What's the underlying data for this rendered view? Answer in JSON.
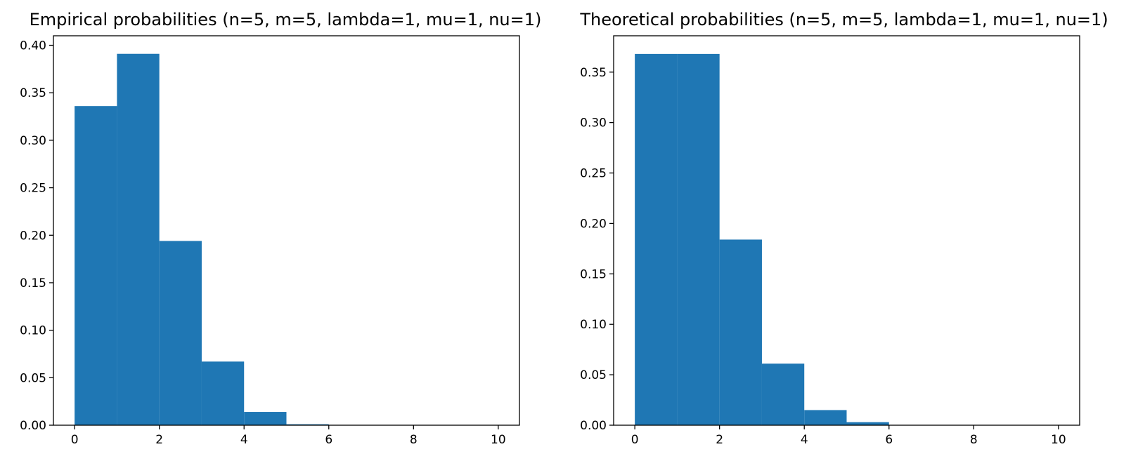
{
  "figure": {
    "background": "#ffffff"
  },
  "chart_data": [
    {
      "type": "bar",
      "title": "Empirical probabilities (n=5, m=5, lambda=1, mu=1, nu=1)",
      "xlabel": "",
      "ylabel": "",
      "color": "#1f77b4",
      "bin_edges": [
        0,
        1,
        2,
        3,
        4,
        5,
        6,
        7,
        8,
        9,
        10
      ],
      "values": [
        0.336,
        0.391,
        0.194,
        0.067,
        0.014,
        0.001,
        0.0,
        0.0,
        0.0,
        0.0
      ],
      "xlim": [
        -0.5,
        10.5
      ],
      "ylim": [
        0,
        0.41
      ],
      "xticks": [
        0,
        2,
        4,
        6,
        8,
        10
      ],
      "xtick_labels": [
        "0",
        "2",
        "4",
        "6",
        "8",
        "10"
      ],
      "yticks": [
        0.0,
        0.05,
        0.1,
        0.15,
        0.2,
        0.25,
        0.3,
        0.35,
        0.4
      ],
      "ytick_labels": [
        "0.00",
        "0.05",
        "0.10",
        "0.15",
        "0.20",
        "0.25",
        "0.30",
        "0.35",
        "0.40"
      ],
      "grid": false,
      "legend": "none"
    },
    {
      "type": "bar",
      "title": "Theoretical probabilities (n=5, m=5, lambda=1, mu=1, nu=1)",
      "xlabel": "",
      "ylabel": "",
      "color": "#1f77b4",
      "bin_edges": [
        0,
        1,
        2,
        3,
        4,
        5,
        6,
        7,
        8,
        9,
        10
      ],
      "values": [
        0.368,
        0.368,
        0.184,
        0.061,
        0.015,
        0.003,
        0.0,
        0.0,
        0.0,
        0.0
      ],
      "xlim": [
        -0.5,
        10.5
      ],
      "ylim": [
        0,
        0.386
      ],
      "xticks": [
        0,
        2,
        4,
        6,
        8,
        10
      ],
      "xtick_labels": [
        "0",
        "2",
        "4",
        "6",
        "8",
        "10"
      ],
      "yticks": [
        0.0,
        0.05,
        0.1,
        0.15,
        0.2,
        0.25,
        0.3,
        0.35
      ],
      "ytick_labels": [
        "0.00",
        "0.05",
        "0.10",
        "0.15",
        "0.20",
        "0.25",
        "0.30",
        "0.35"
      ],
      "grid": false,
      "legend": "none"
    }
  ]
}
